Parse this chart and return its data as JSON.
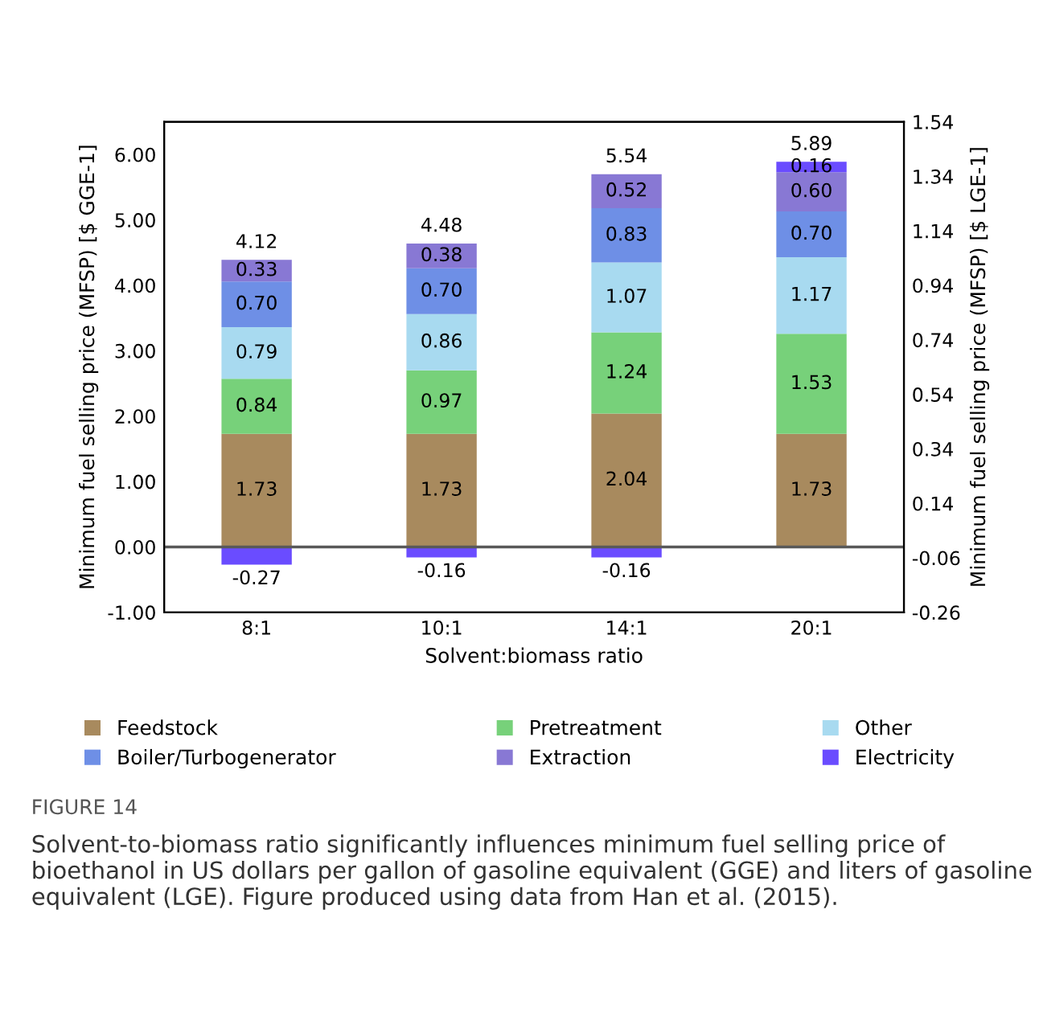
{
  "chart_data": {
    "type": "bar",
    "stacked": true,
    "categories": [
      "8:1",
      "10:1",
      "14:1",
      "20:1"
    ],
    "series": [
      {
        "name": "Feedstock",
        "color": "#a88a5e",
        "values": [
          1.73,
          1.73,
          2.04,
          1.73
        ],
        "value_labels": [
          "1.73",
          "1.73",
          "2.04",
          "1.73"
        ]
      },
      {
        "name": "Pretreatment",
        "color": "#77d17a",
        "values": [
          0.84,
          0.97,
          1.24,
          1.53
        ],
        "value_labels": [
          "0.84",
          "0.97",
          "1.24",
          "1.53"
        ]
      },
      {
        "name": "Other",
        "color": "#a8daf0",
        "values": [
          0.79,
          0.86,
          1.07,
          1.17
        ],
        "value_labels": [
          "0.79",
          "0.86",
          "1.07",
          "1.17"
        ]
      },
      {
        "name": "Boiler/Turbogenerator",
        "color": "#6e8fe6",
        "values": [
          0.7,
          0.7,
          0.83,
          0.7
        ],
        "value_labels": [
          "0.70",
          "0.70",
          "0.83",
          "0.70"
        ]
      },
      {
        "name": "Extraction",
        "color": "#8878d4",
        "values": [
          0.33,
          0.38,
          0.52,
          0.6
        ],
        "value_labels": [
          "0.33",
          "0.38",
          "0.52",
          "0.60"
        ]
      },
      {
        "name": "Electricity",
        "color": "#6a4cff",
        "values": [
          -0.27,
          -0.16,
          -0.16,
          0.16
        ],
        "value_labels": [
          "-0.27",
          "-0.16",
          "-0.16",
          "0.16"
        ]
      }
    ],
    "totals": [
      "4.12",
      "4.48",
      "5.54",
      "5.89"
    ],
    "xlabel": "Solvent:biomass ratio",
    "ylabel": "Minimum fuel selling price (MFSP) [$ GGE-1]",
    "y2label": "Minimum fuel selling price (MFSP) [$ LGE-1]",
    "ylim": [
      -1,
      6.5
    ],
    "yticks": [
      {
        "value": -1,
        "label": "-1.00"
      },
      {
        "value": 0,
        "label": "0.00"
      },
      {
        "value": 1,
        "label": "1.00"
      },
      {
        "value": 2,
        "label": "2.00"
      },
      {
        "value": 3,
        "label": "3.00"
      },
      {
        "value": 4,
        "label": "4.00"
      },
      {
        "value": 5,
        "label": "5.00"
      },
      {
        "value": 6,
        "label": "6.00"
      }
    ],
    "y2lim": [
      -0.26,
      1.54
    ],
    "y2ticks": [
      -0.26,
      -0.06,
      0.14,
      0.34,
      0.54,
      0.74,
      0.94,
      1.14,
      1.34,
      1.54
    ],
    "ref_lines": [
      {
        "axis": "y",
        "value": 0,
        "color": "#595959"
      }
    ],
    "legend": "bottom",
    "annotations": [
      "FIGURE 14",
      "Solvent-to-biomass ratio significantly influences minimum fuel selling price of bioethanol in US dollars per gallon of gasoline equivalent (GGE) and liters of gasoline equivalent (LGE). Figure produced using data from Han et al. (2015)."
    ]
  }
}
